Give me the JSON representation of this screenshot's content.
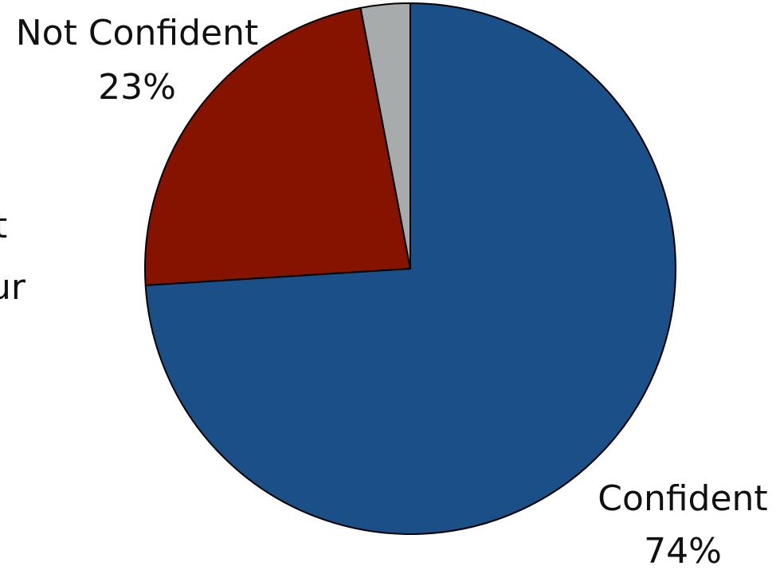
{
  "chart_data": {
    "type": "pie",
    "title": "",
    "slices": [
      {
        "label": "Confident",
        "value": 74,
        "display": "74%",
        "color": "#1a4f87"
      },
      {
        "label": "Not Confident",
        "value": 23,
        "display": "23%",
        "color": "#861200"
      },
      {
        "label": "",
        "value": 3,
        "display": "",
        "color": "#a8abab"
      }
    ],
    "start": "12 o'clock",
    "direction": "clockwise",
    "edge_color": "#000000",
    "legend": "none"
  },
  "cut_off_text": [
    "t",
    "ur"
  ]
}
